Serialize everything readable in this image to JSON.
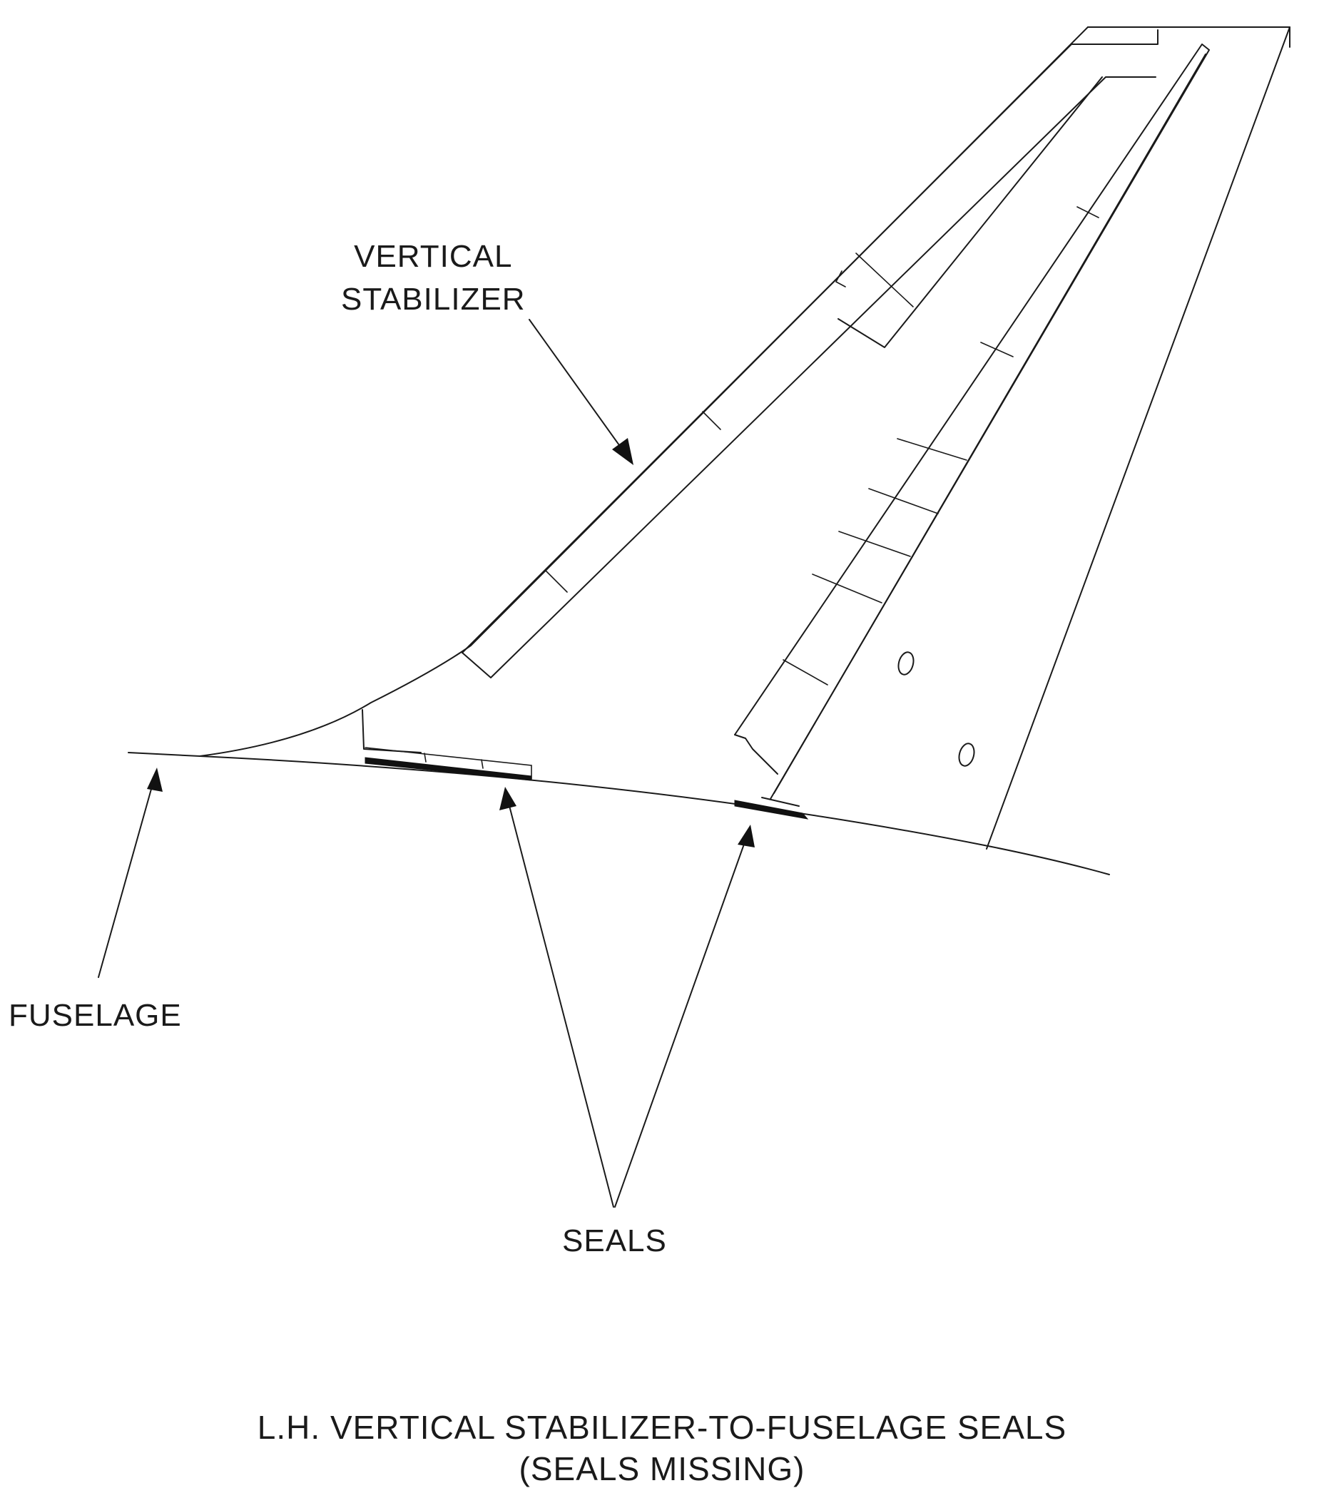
{
  "labels": {
    "vertical_stabilizer_line1": "VERTICAL",
    "vertical_stabilizer_line2": "STABILIZER",
    "fuselage": "FUSELAGE",
    "seals": "SEALS"
  },
  "caption": {
    "line1": "L.H. VERTICAL STABILIZER-TO-FUSELAGE SEALS",
    "line2": "(SEALS MISSING)"
  },
  "colors": {
    "line": "#1a1a1a",
    "seal": "#111111",
    "background": "#ffffff"
  }
}
